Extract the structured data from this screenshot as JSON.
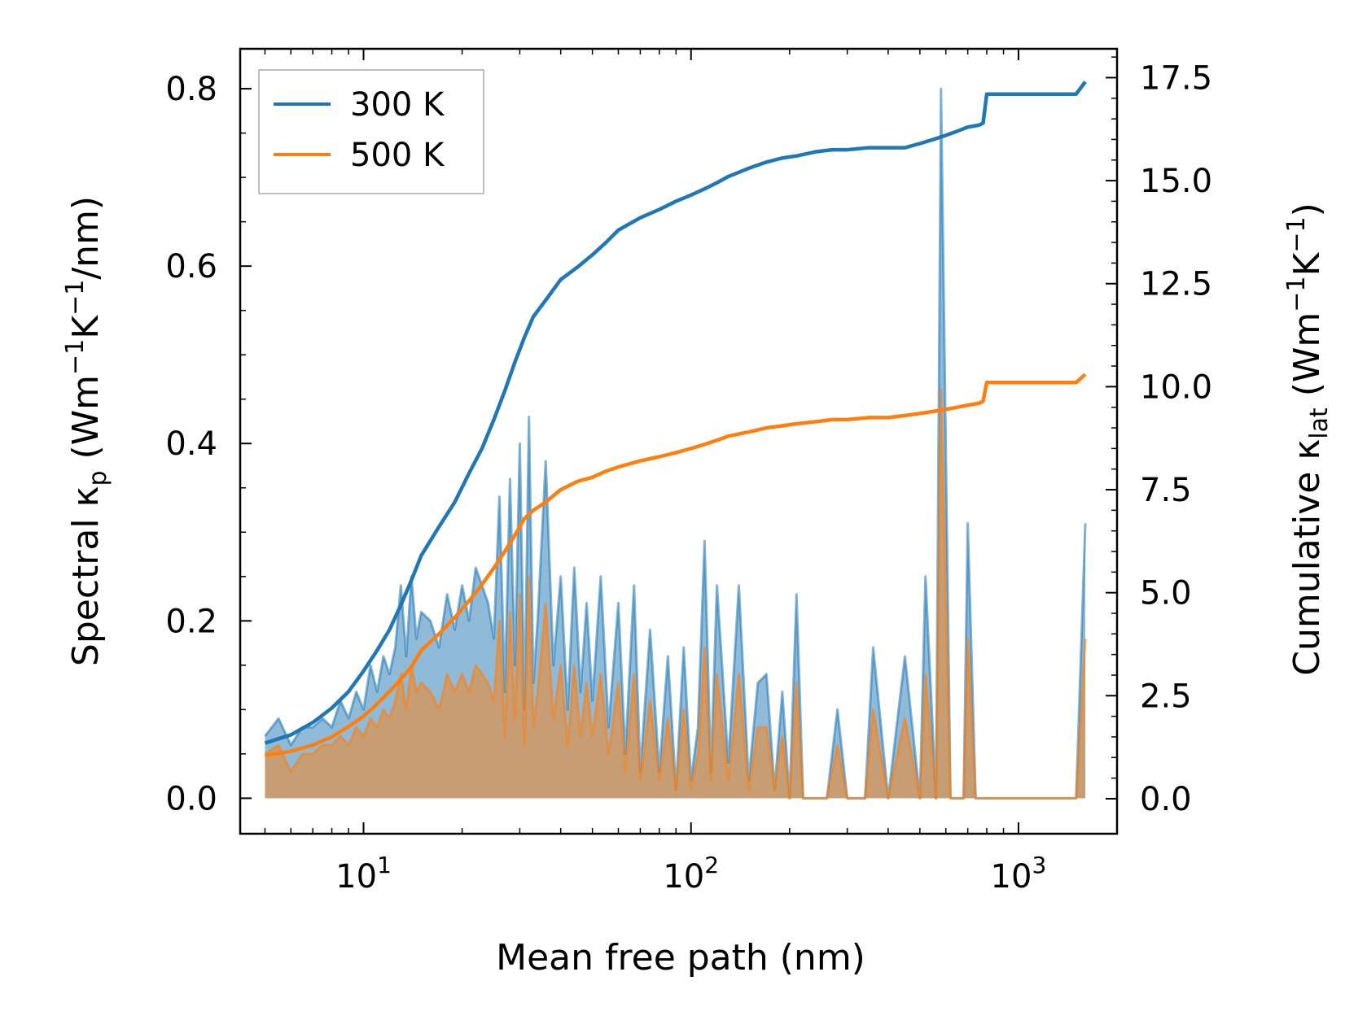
{
  "chart_data": {
    "type": "line",
    "title": "",
    "xlabel": "Mean free path (nm)",
    "ylabel_left": {
      "base": "Spectral κ",
      "sub": "p",
      "unit_pre": " (Wm",
      "sup1": "−1",
      "unit_mid": "K",
      "sup2": "−1",
      "unit_post": "/nm)"
    },
    "ylabel_right": {
      "base": "Cumulative κ",
      "sub": "lat",
      "unit_pre": " (Wm",
      "sup1": "−1",
      "unit_mid": "K",
      "sup2": "−1",
      "unit_post": ")"
    },
    "xscale": "log",
    "xlim": [
      4.2,
      2000
    ],
    "ylim_left": [
      -0.04,
      0.845
    ],
    "ylim_right": [
      -0.85,
      18.2
    ],
    "x_ticks": [
      {
        "value": 10,
        "base": "10",
        "exp": "1"
      },
      {
        "value": 100,
        "base": "10",
        "exp": "2"
      },
      {
        "value": 1000,
        "base": "10",
        "exp": "3"
      }
    ],
    "yticks_left": [
      "0.0",
      "0.2",
      "0.4",
      "0.6",
      "0.8"
    ],
    "yticks_left_values": [
      0,
      0.2,
      0.4,
      0.6,
      0.8
    ],
    "yticks_right": [
      "0.0",
      "2.5",
      "5.0",
      "7.5",
      "10.0",
      "12.5",
      "15.0",
      "17.5"
    ],
    "yticks_right_values": [
      0,
      2.5,
      5,
      7.5,
      10,
      12.5,
      15,
      17.5
    ],
    "legend": {
      "position": "top-left",
      "entries": [
        "300 K",
        "500 K"
      ]
    },
    "colors": {
      "300K": "#1f77b4",
      "500K": "#ff7f0e",
      "fill_300K": "#1f77b4",
      "fill_500K": "#ff7f0e"
    },
    "spectral_x": [
      5,
      5.5,
      6,
      6.5,
      7,
      7.5,
      8,
      8.5,
      9,
      9.5,
      10,
      10.5,
      11,
      11.5,
      12,
      12.5,
      13,
      13.5,
      14,
      14.5,
      15,
      16,
      17,
      18,
      19,
      20,
      21,
      22,
      23,
      24,
      25,
      26,
      27,
      28,
      29,
      30,
      31,
      32,
      33,
      34,
      36,
      38,
      40,
      42,
      44,
      46,
      48,
      50,
      53,
      56,
      60,
      63,
      67,
      70,
      75,
      80,
      85,
      90,
      95,
      100,
      105,
      110,
      115,
      120,
      130,
      140,
      150,
      160,
      170,
      180,
      190,
      200,
      210,
      220,
      240,
      260,
      280,
      300,
      340,
      360,
      400,
      450,
      500,
      520,
      560,
      580,
      620,
      680,
      700,
      740,
      770,
      800,
      830,
      1500,
      1600
    ],
    "spectral_300K": [
      0.07,
      0.09,
      0.06,
      0.08,
      0.08,
      0.09,
      0.08,
      0.11,
      0.09,
      0.12,
      0.1,
      0.15,
      0.12,
      0.16,
      0.14,
      0.17,
      0.24,
      0.16,
      0.25,
      0.18,
      0.21,
      0.2,
      0.17,
      0.23,
      0.19,
      0.24,
      0.2,
      0.26,
      0.24,
      0.22,
      0.18,
      0.34,
      0.12,
      0.36,
      0.15,
      0.4,
      0.1,
      0.43,
      0.13,
      0.2,
      0.38,
      0.15,
      0.25,
      0.1,
      0.26,
      0.12,
      0.22,
      0.11,
      0.25,
      0.08,
      0.22,
      0.05,
      0.24,
      0.03,
      0.19,
      0.03,
      0.16,
      0.01,
      0.17,
      0.02,
      0.08,
      0.29,
      0.03,
      0.24,
      0.04,
      0.24,
      0.02,
      0.13,
      0.14,
      0.01,
      0.12,
      0.0,
      0.23,
      0.0,
      0.0,
      0.0,
      0.1,
      0.0,
      0.0,
      0.17,
      0.0,
      0.16,
      0.0,
      0.25,
      0.0,
      0.8,
      0.0,
      0.0,
      0.31,
      0.0,
      0.0,
      0.0,
      0.0,
      0.0,
      0.31
    ],
    "spectral_500K": [
      0.05,
      0.06,
      0.03,
      0.05,
      0.05,
      0.06,
      0.06,
      0.07,
      0.06,
      0.08,
      0.07,
      0.09,
      0.08,
      0.1,
      0.09,
      0.11,
      0.14,
      0.1,
      0.15,
      0.12,
      0.13,
      0.12,
      0.1,
      0.14,
      0.12,
      0.14,
      0.12,
      0.15,
      0.14,
      0.13,
      0.11,
      0.2,
      0.07,
      0.21,
      0.09,
      0.23,
      0.06,
      0.25,
      0.08,
      0.12,
      0.22,
      0.09,
      0.15,
      0.06,
      0.15,
      0.07,
      0.13,
      0.07,
      0.14,
      0.05,
      0.13,
      0.03,
      0.14,
      0.02,
      0.11,
      0.02,
      0.09,
      0.01,
      0.1,
      0.01,
      0.05,
      0.17,
      0.02,
      0.14,
      0.02,
      0.14,
      0.01,
      0.08,
      0.08,
      0.01,
      0.07,
      0.0,
      0.13,
      0.0,
      0.0,
      0.0,
      0.06,
      0.0,
      0.0,
      0.1,
      0.0,
      0.09,
      0.0,
      0.14,
      0.0,
      0.46,
      0.0,
      0.0,
      0.18,
      0.0,
      0.0,
      0.0,
      0.0,
      0.0,
      0.18
    ],
    "cumulative_x": [
      5,
      6,
      7,
      8,
      9,
      10,
      11,
      12,
      13,
      14,
      15,
      17,
      19,
      21,
      23,
      25,
      27,
      29,
      31,
      33,
      36,
      40,
      45,
      50,
      55,
      60,
      70,
      80,
      90,
      100,
      110,
      120,
      130,
      150,
      170,
      190,
      210,
      240,
      270,
      300,
      350,
      400,
      450,
      500,
      550,
      600,
      650,
      700,
      760,
      780,
      800,
      1500,
      1600
    ],
    "cumulative_300K": [
      1.35,
      1.55,
      1.85,
      2.2,
      2.6,
      3.1,
      3.6,
      4.1,
      4.7,
      5.3,
      5.9,
      6.6,
      7.2,
      7.9,
      8.5,
      9.2,
      9.9,
      10.6,
      11.2,
      11.7,
      12.1,
      12.6,
      12.9,
      13.2,
      13.5,
      13.8,
      14.1,
      14.3,
      14.5,
      14.65,
      14.8,
      14.95,
      15.1,
      15.3,
      15.45,
      15.55,
      15.6,
      15.7,
      15.75,
      15.75,
      15.8,
      15.8,
      15.8,
      15.9,
      16.0,
      16.1,
      16.2,
      16.3,
      16.35,
      16.4,
      17.1,
      17.1,
      17.4
    ],
    "cumulative_500K": [
      1.05,
      1.15,
      1.3,
      1.5,
      1.75,
      2.0,
      2.3,
      2.6,
      2.9,
      3.2,
      3.6,
      4.0,
      4.4,
      4.8,
      5.2,
      5.6,
      6.0,
      6.4,
      6.8,
      7.0,
      7.2,
      7.5,
      7.7,
      7.8,
      7.95,
      8.05,
      8.2,
      8.3,
      8.4,
      8.5,
      8.6,
      8.7,
      8.8,
      8.9,
      9.0,
      9.05,
      9.1,
      9.15,
      9.2,
      9.2,
      9.25,
      9.25,
      9.3,
      9.35,
      9.4,
      9.45,
      9.5,
      9.55,
      9.6,
      9.65,
      10.1,
      10.1,
      10.3
    ]
  }
}
